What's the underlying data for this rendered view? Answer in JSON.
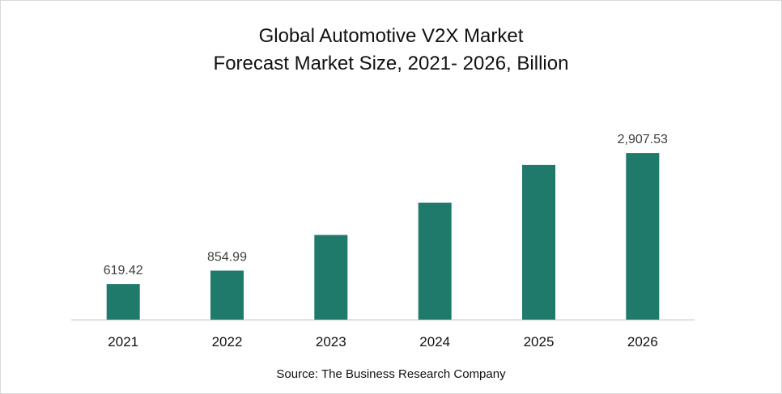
{
  "chart_data": {
    "type": "bar",
    "title_line1": "Global Automotive V2X Market",
    "title_line2": "Forecast Market Size, 2021- 2026, Billion",
    "categories": [
      "2021",
      "2022",
      "2023",
      "2024",
      "2025",
      "2026"
    ],
    "values": [
      619.42,
      854.99,
      1478,
      2039,
      2699,
      2907.53
    ],
    "data_labels": [
      "619.42",
      "854.99",
      "",
      "",
      "",
      "2,907.53"
    ],
    "ylim": [
      0,
      3000
    ],
    "grid": false,
    "bar_color": "#1f7a6c",
    "axis_color": "#bfbfbf"
  },
  "source": "Source: The Business Research Company"
}
